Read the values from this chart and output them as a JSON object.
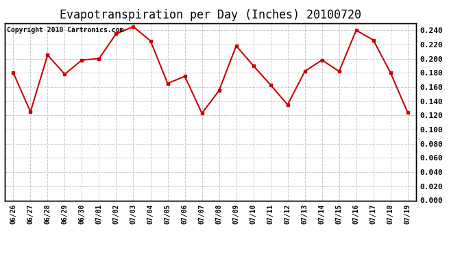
{
  "title": "Evapotranspiration per Day (Inches) 20100720",
  "copyright_text": "Copyright 2010 Cartronics.com",
  "dates": [
    "06/26",
    "06/27",
    "06/28",
    "06/29",
    "06/30",
    "07/01",
    "07/02",
    "07/03",
    "07/04",
    "07/05",
    "07/06",
    "07/07",
    "07/08",
    "07/09",
    "07/10",
    "07/11",
    "07/12",
    "07/13",
    "07/14",
    "07/15",
    "07/16",
    "07/17",
    "07/18",
    "07/19"
  ],
  "values": [
    0.18,
    0.125,
    0.205,
    0.178,
    0.198,
    0.2,
    0.235,
    0.245,
    0.225,
    0.165,
    0.175,
    0.123,
    0.155,
    0.218,
    0.19,
    0.163,
    0.135,
    0.182,
    0.198,
    0.182,
    0.24,
    0.226,
    0.18,
    0.124
  ],
  "line_color": "#cc0000",
  "marker_color": "#cc0000",
  "background_color": "#ffffff",
  "plot_bg_color": "#ffffff",
  "grid_color": "#c8c8c8",
  "ylim": [
    0.0,
    0.25
  ],
  "ytick_step": 0.02,
  "title_fontsize": 12,
  "copyright_fontsize": 7,
  "tick_fontsize": 8,
  "xtick_fontsize": 7
}
